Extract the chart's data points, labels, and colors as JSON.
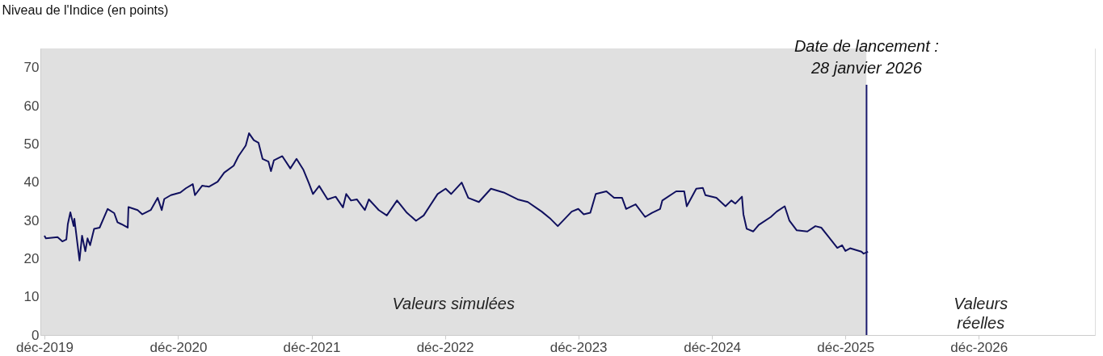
{
  "chart_data": {
    "type": "line",
    "ylabel": "Niveau de l'Indice (en points)",
    "xlim": [
      "2019-11-20",
      "2027-10-15"
    ],
    "xticks": [
      {
        "value": "2019-12",
        "label": "déc-2019"
      },
      {
        "value": "2020-12",
        "label": "déc-2020"
      },
      {
        "value": "2021-12",
        "label": "déc-2021"
      },
      {
        "value": "2022-12",
        "label": "déc-2022"
      },
      {
        "value": "2023-12",
        "label": "déc-2023"
      },
      {
        "value": "2024-12",
        "label": "déc-2024"
      },
      {
        "value": "2025-12",
        "label": "déc-2025"
      },
      {
        "value": "2026-12",
        "label": "déc-2026"
      }
    ],
    "ylim": [
      0,
      75
    ],
    "yticks": [
      0,
      10,
      20,
      30,
      40,
      50,
      60,
      70
    ],
    "grid": false,
    "legend": false,
    "marker": "none",
    "line_style": "solid",
    "ref_lines": [
      {
        "axis": "x",
        "value": "2026-01-28",
        "label": "Date de lancement :\n28 janvier 2026",
        "color": "#1a1a6e"
      }
    ],
    "bands": [
      {
        "axis": "x",
        "from": "2019-11-20",
        "to": "2026-01-28",
        "label": "Valeurs simulées",
        "color": "#e0e0e0"
      },
      {
        "axis": "x",
        "from": "2026-01-28",
        "to": "2027-10-15",
        "label": "Valeurs\nréelles",
        "color": "#ffffff"
      }
    ],
    "series": [
      {
        "color": "#10105e",
        "x": [
          "2019-12-01",
          "2019-12-05",
          "2020-01-06",
          "2020-01-19",
          "2020-01-30",
          "2020-02-03",
          "2020-02-10",
          "2020-02-19",
          "2020-02-21",
          "2020-03-06",
          "2020-03-13",
          "2020-03-22",
          "2020-03-28",
          "2020-04-04",
          "2020-04-15",
          "2020-04-30",
          "2020-05-22",
          "2020-06-09",
          "2020-06-18",
          "2020-06-29",
          "2020-07-16",
          "2020-07-18",
          "2020-08-12",
          "2020-08-25",
          "2020-09-17",
          "2020-10-06",
          "2020-10-17",
          "2020-10-24",
          "2020-11-11",
          "2020-12-07",
          "2020-12-22",
          "2021-01-10",
          "2021-01-16",
          "2021-02-05",
          "2021-02-23",
          "2021-03-19",
          "2021-04-06",
          "2021-05-02",
          "2021-05-15",
          "2021-06-04",
          "2021-06-13",
          "2021-06-26",
          "2021-07-09",
          "2021-07-20",
          "2021-08-05",
          "2021-08-12",
          "2021-08-20",
          "2021-09-12",
          "2021-10-04",
          "2021-10-21",
          "2021-11-09",
          "2021-11-24",
          "2021-12-05",
          "2021-12-22",
          "2022-01-14",
          "2022-02-05",
          "2022-02-25",
          "2022-03-06",
          "2022-03-19",
          "2022-04-04",
          "2022-04-26",
          "2022-05-07",
          "2022-06-03",
          "2022-06-25",
          "2022-07-23",
          "2022-08-19",
          "2022-09-13",
          "2022-10-04",
          "2022-11-11",
          "2022-12-03",
          "2022-12-18",
          "2023-01-16",
          "2023-02-03",
          "2023-03-04",
          "2023-04-06",
          "2023-05-11",
          "2023-06-18",
          "2023-07-16",
          "2023-08-23",
          "2023-09-14",
          "2023-10-06",
          "2023-11-13",
          "2023-12-01",
          "2023-12-16",
          "2024-01-03",
          "2024-01-18",
          "2024-02-16",
          "2024-03-08",
          "2024-03-30",
          "2024-04-10",
          "2024-05-06",
          "2024-06-01",
          "2024-06-20",
          "2024-07-12",
          "2024-07-18",
          "2024-08-25",
          "2024-09-16",
          "2024-09-23",
          "2024-10-19",
          "2024-11-06",
          "2024-11-13",
          "2024-12-13",
          "2025-01-07",
          "2025-01-23",
          "2025-02-03",
          "2025-02-21",
          "2025-02-25",
          "2025-03-06",
          "2025-03-24",
          "2025-04-08",
          "2025-05-11",
          "2025-05-27",
          "2025-06-18",
          "2025-07-01",
          "2025-07-21",
          "2025-08-19",
          "2025-09-10",
          "2025-09-26",
          "2025-10-17",
          "2025-11-09",
          "2025-11-22",
          "2025-12-01",
          "2025-12-14",
          "2026-01-14",
          "2026-01-20",
          "2026-02-01"
        ],
        "values": [
          26.0,
          25.3,
          25.6,
          24.5,
          25.0,
          29.0,
          32.1,
          28.5,
          30.4,
          19.5,
          26.0,
          21.9,
          25.3,
          23.5,
          27.8,
          28.1,
          33.0,
          31.9,
          29.5,
          29.0,
          28.1,
          33.5,
          32.7,
          31.6,
          32.7,
          35.9,
          32.7,
          35.6,
          36.6,
          37.3,
          38.4,
          39.5,
          36.6,
          39.1,
          38.8,
          40.1,
          42.5,
          44.3,
          46.8,
          49.6,
          52.8,
          51.0,
          50.3,
          46.1,
          45.4,
          42.9,
          45.7,
          46.8,
          43.6,
          46.1,
          43.2,
          39.7,
          36.9,
          39.0,
          35.5,
          36.2,
          33.4,
          36.9,
          35.2,
          35.5,
          32.7,
          35.5,
          32.7,
          31.3,
          35.2,
          32.0,
          29.9,
          31.3,
          36.9,
          38.3,
          36.9,
          39.9,
          35.9,
          34.8,
          38.3,
          37.3,
          35.5,
          34.8,
          32.3,
          30.6,
          28.5,
          32.3,
          33.0,
          31.6,
          32.0,
          36.9,
          37.6,
          35.9,
          35.9,
          33.0,
          34.2,
          30.9,
          32.0,
          33.0,
          35.2,
          37.6,
          37.6,
          33.7,
          38.3,
          38.5,
          36.6,
          35.9,
          33.7,
          35.2,
          34.4,
          36.2,
          31.6,
          27.8,
          27.1,
          28.8,
          30.9,
          32.3,
          33.7,
          29.9,
          27.4,
          27.1,
          28.5,
          28.1,
          25.6,
          22.8,
          23.5,
          22.0,
          22.7,
          21.8,
          21.3,
          21.8
        ]
      }
    ]
  }
}
